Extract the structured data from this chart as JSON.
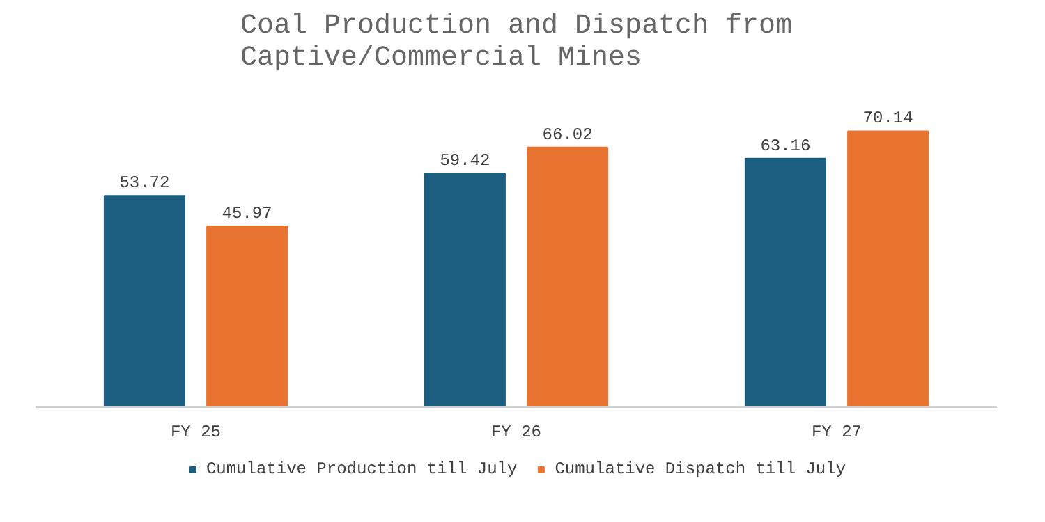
{
  "chart_data": {
    "type": "bar",
    "title": "Coal Production and Dispatch from Captive/Commercial Mines",
    "categories": [
      "FY 25",
      "FY 26",
      "FY 27"
    ],
    "series": [
      {
        "name": "Cumulative Production till July",
        "color": "#1b5e80",
        "values": [
          53.72,
          59.42,
          63.16
        ]
      },
      {
        "name": "Cumulative Dispatch till July",
        "color": "#e97432",
        "values": [
          45.97,
          66.02,
          70.14
        ]
      }
    ],
    "data_labels": true,
    "grid": false,
    "legend": "bottom"
  }
}
